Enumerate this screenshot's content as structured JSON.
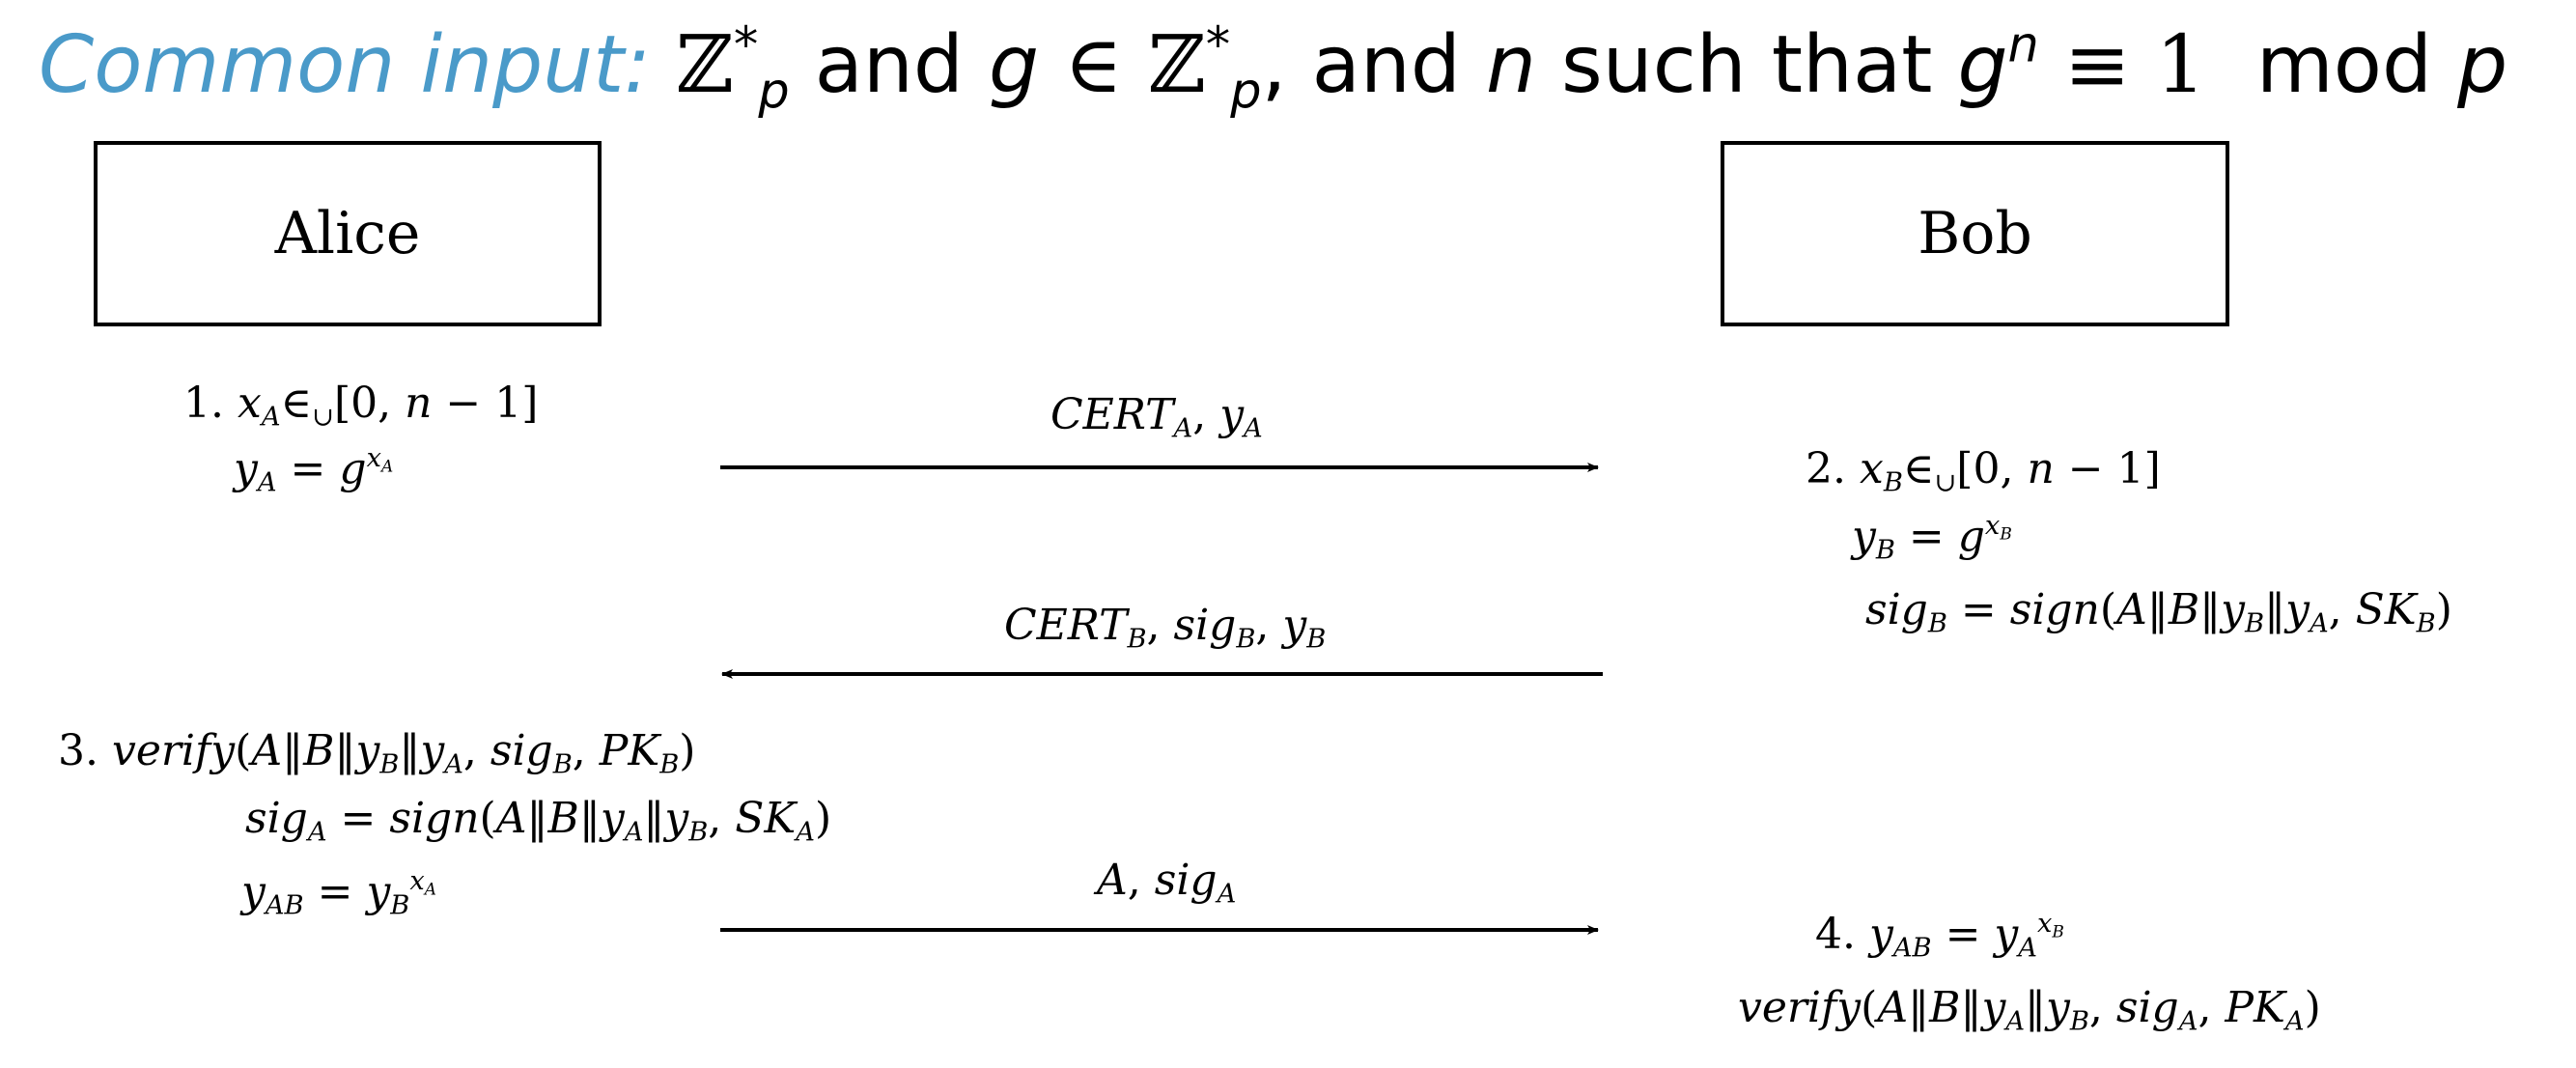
{
  "title": {
    "lead": "Common input:",
    "group_symbol": "ℤ",
    "star": "*",
    "subscript_p": "p",
    "and1": "and",
    "g": "g",
    "elem": "∈",
    "comma_and": ", and",
    "n": "n",
    "such_that": "such that",
    "g2": "g",
    "exp_n": "n",
    "equiv": "≡ 1",
    "mod": "mod",
    "p": "p"
  },
  "parties": {
    "alice": "Alice",
    "bob": "Bob"
  },
  "steps": {
    "step1_num": "1.",
    "step2_num": "2.",
    "step3_num": "3.",
    "step4_num": "4."
  },
  "messages": {
    "m1": "CERT_A, y_A",
    "m2": "CERT_B, sig_B, y_B",
    "m3": "A, sig_A"
  },
  "arrows": [
    {
      "from": "Alice",
      "to": "Bob",
      "label": "CERT_A, y_A"
    },
    {
      "from": "Bob",
      "to": "Alice",
      "label": "CERT_B, sig_B, y_B"
    },
    {
      "from": "Alice",
      "to": "Bob",
      "label": "A, sig_A"
    }
  ]
}
